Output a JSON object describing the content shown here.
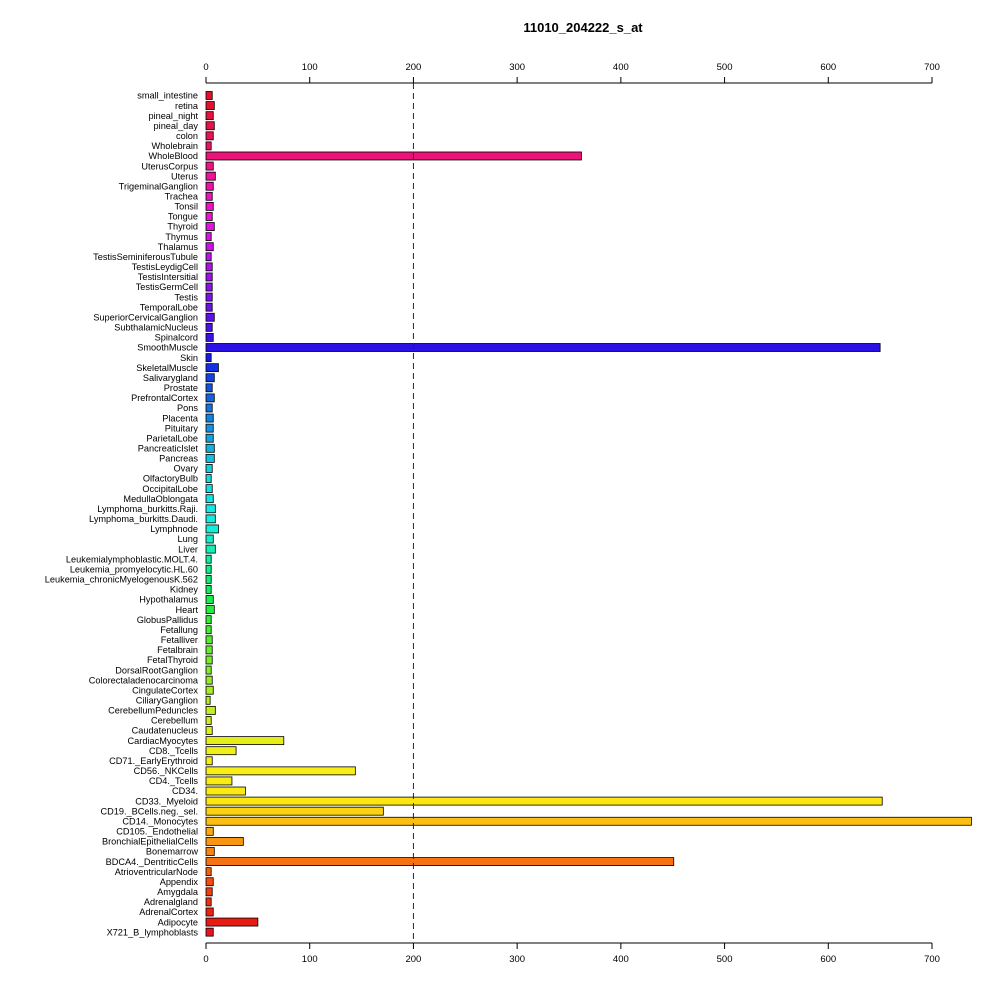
{
  "chart_data": {
    "type": "bar",
    "orientation": "horizontal",
    "title": "11010_204222_s_at",
    "xlim": [
      0,
      740
    ],
    "xticks": [
      0,
      100,
      200,
      300,
      400,
      500,
      600,
      700
    ],
    "reference_line": 200,
    "axes": "top and bottom",
    "grid": false,
    "legend": "none",
    "categories": [
      "small_intestine",
      "retina",
      "pineal_night",
      "pineal_day",
      "colon",
      "Wholebrain",
      "WholeBlood",
      "UterusCorpus",
      "Uterus",
      "TrigeminalGanglion",
      "Trachea",
      "Tonsil",
      "Tongue",
      "Thyroid",
      "Thymus",
      "Thalamus",
      "TestisSeminiferousTubule",
      "TestisLeydigCell",
      "TestisIntersitial",
      "TestisGermCell",
      "Testis",
      "TemporalLobe",
      "SuperiorCervicalGanglion",
      "SubthalamicNucleus",
      "Spinalcord",
      "SmoothMuscle",
      "Skin",
      "SkeletalMuscle",
      "Salivarygland",
      "Prostate",
      "PrefrontalCortex",
      "Pons",
      "Placenta",
      "Pituitary",
      "ParietalLobe",
      "PancreaticIslet",
      "Pancreas",
      "Ovary",
      "OlfactoryBulb",
      "OccipitalLobe",
      "MedullaOblongata",
      "Lymphoma_burkitts.Raji.",
      "Lymphoma_burkitts.Daudi.",
      "Lymphnode",
      "Lung",
      "Liver",
      "Leukemialymphoblastic.MOLT.4.",
      "Leukemia_promyelocytic.HL.60",
      "Leukemia_chronicMyelogenousK.562",
      "Kidney",
      "Hypothalamus",
      "Heart",
      "GlobusPallidus",
      "Fetallung",
      "Fetalliver",
      "Fetalbrain",
      "FetalThyroid",
      "DorsalRootGanglion",
      "Colorectaladenocarcinoma",
      "CingulateCortex",
      "CiliaryGanglion",
      "CerebellumPeduncles",
      "Cerebellum",
      "Caudatenucleus",
      "CardiacMyocytes",
      "CD8._Tcells",
      "CD71._EarlyErythroid",
      "CD56._NKCells",
      "CD4._Tcells",
      "CD34.",
      "CD33._Myeloid",
      "CD19._BCells.neg._sel.",
      "CD14._Monocytes",
      "CD105._Endothelial",
      "BronchialEpithelialCells",
      "Bonemarrow",
      "BDCA4._DentriticCells",
      "AtrioventricularNode",
      "Appendix",
      "Amygdala",
      "Adrenalgland",
      "AdrenalCortex",
      "Adipocyte",
      "X721_B_lymphoblasts"
    ],
    "values": [
      6,
      8,
      7,
      8,
      7,
      5,
      362,
      7,
      9,
      7,
      6,
      7,
      6,
      8,
      5,
      7,
      5,
      6,
      6,
      6,
      6,
      6,
      8,
      6,
      7,
      650,
      5,
      12,
      8,
      6,
      8,
      6,
      7,
      7,
      7,
      8,
      8,
      6,
      5,
      6,
      7,
      9,
      9,
      12,
      7,
      9,
      5,
      5,
      5,
      5,
      7,
      8,
      5,
      5,
      6,
      6,
      6,
      5,
      6,
      7,
      4,
      9,
      5,
      6,
      75,
      29,
      6,
      144,
      25,
      38,
      652,
      171,
      738,
      7,
      36,
      8,
      451,
      5,
      7,
      6,
      5,
      7,
      50,
      7
    ],
    "colors": [
      "#e3112e",
      "#e3112e",
      "#e5113e",
      "#e6124a",
      "#e71257",
      "#e81263",
      "#ec1278",
      "#ec1287",
      "#ed1298",
      "#ed12a8",
      "#ed12b8",
      "#ec12c8",
      "#ea12d6",
      "#e412e0",
      "#d812e6",
      "#cc12e8",
      "#bb12e8",
      "#aa12e8",
      "#9a12e8",
      "#8a12e8",
      "#7a12e8",
      "#6a12e8",
      "#5a12e8",
      "#4a12e8",
      "#3a12e8",
      "#2a12e4",
      "#1a1ae0",
      "#1230e0",
      "#1242e0",
      "#1252e0",
      "#1262e0",
      "#1272e0",
      "#1282e0",
      "#1292e0",
      "#12a2e0",
      "#12b2e0",
      "#12c2e0",
      "#12d0e0",
      "#12dce0",
      "#12e0e0",
      "#12e6e2",
      "#12eae6",
      "#12ece2",
      "#12eed8",
      "#12eec8",
      "#12eeb4",
      "#12ee9e",
      "#12ee88",
      "#12ee74",
      "#12ee60",
      "#18ee50",
      "#24ee40",
      "#34ee34",
      "#44ee30",
      "#54ee2e",
      "#64ee2c",
      "#74ee2a",
      "#84ee28",
      "#94ee26",
      "#a4ee24",
      "#b4ee22",
      "#c4ee20",
      "#d0ee1e",
      "#dcee1c",
      "#e6ee1a",
      "#eeee18",
      "#f2ee16",
      "#f6ee14",
      "#f8ec12",
      "#faea12",
      "#fbe612",
      "#fbd212",
      "#fbbe12",
      "#fbaa12",
      "#f89612",
      "#f68412",
      "#f47212",
      "#f26012",
      "#f04e12",
      "#ee3e12",
      "#ec3012",
      "#ea2412",
      "#e81a12",
      "#e6141e"
    ]
  }
}
